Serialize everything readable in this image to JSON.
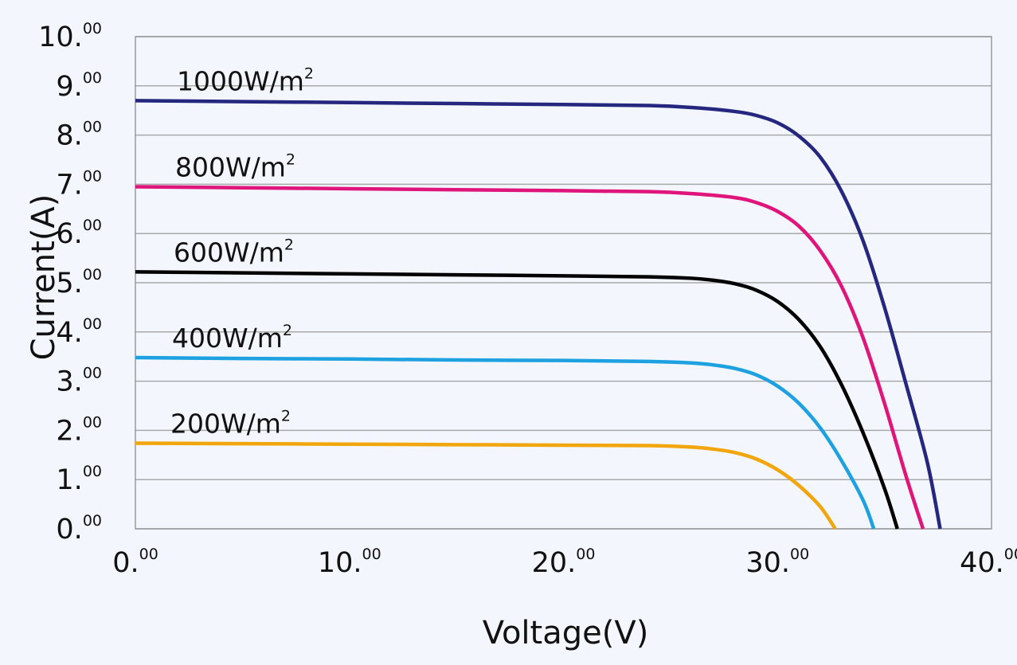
{
  "chart_data": {
    "type": "line",
    "title": "",
    "xlabel": "Voltage(V)",
    "ylabel": "Current(A)",
    "xlim": [
      0,
      40
    ],
    "ylim": [
      0,
      10
    ],
    "grid": true,
    "x_ticks": [
      {
        "value": 0,
        "main": "0.",
        "sup": "00"
      },
      {
        "value": 10,
        "main": "10.",
        "sup": "00"
      },
      {
        "value": 20,
        "main": "20.",
        "sup": "00"
      },
      {
        "value": 30,
        "main": "30.",
        "sup": "00"
      },
      {
        "value": 40,
        "main": "40.",
        "sup": "00"
      }
    ],
    "y_ticks": [
      {
        "value": 0,
        "main": "0.",
        "sup": "00"
      },
      {
        "value": 1,
        "main": "1.",
        "sup": "00"
      },
      {
        "value": 2,
        "main": "2.",
        "sup": "00"
      },
      {
        "value": 3,
        "main": "3.",
        "sup": "00"
      },
      {
        "value": 4,
        "main": "4.",
        "sup": "00"
      },
      {
        "value": 5,
        "main": "5.",
        "sup": "00"
      },
      {
        "value": 6,
        "main": "6.",
        "sup": "00"
      },
      {
        "value": 7,
        "main": "7.",
        "sup": "00"
      },
      {
        "value": 8,
        "main": "8.",
        "sup": "00"
      },
      {
        "value": 9,
        "main": "9.",
        "sup": "00"
      },
      {
        "value": 10,
        "main": "10.",
        "sup": "00"
      }
    ],
    "series": [
      {
        "name": "1000W/m",
        "name_sup": "2",
        "color": "#25277f",
        "points": [
          [
            0,
            8.7
          ],
          [
            5,
            8.68
          ],
          [
            10,
            8.66
          ],
          [
            15,
            8.64
          ],
          [
            20,
            8.62
          ],
          [
            24,
            8.6
          ],
          [
            26,
            8.56
          ],
          [
            28,
            8.48
          ],
          [
            29,
            8.4
          ],
          [
            30,
            8.25
          ],
          [
            31,
            7.98
          ],
          [
            32,
            7.55
          ],
          [
            33,
            6.85
          ],
          [
            34,
            5.85
          ],
          [
            35,
            4.5
          ],
          [
            36,
            2.95
          ],
          [
            37,
            1.35
          ],
          [
            37.6,
            0
          ]
        ]
      },
      {
        "name": "800W/m",
        "name_sup": "2",
        "color": "#e0157c",
        "points": [
          [
            0,
            6.95
          ],
          [
            5,
            6.93
          ],
          [
            10,
            6.91
          ],
          [
            15,
            6.89
          ],
          [
            20,
            6.87
          ],
          [
            24,
            6.85
          ],
          [
            26,
            6.81
          ],
          [
            28,
            6.73
          ],
          [
            29,
            6.63
          ],
          [
            30,
            6.45
          ],
          [
            31,
            6.15
          ],
          [
            32,
            5.65
          ],
          [
            33,
            4.92
          ],
          [
            34,
            3.88
          ],
          [
            35,
            2.55
          ],
          [
            36,
            1.08
          ],
          [
            36.8,
            0
          ]
        ]
      },
      {
        "name": "600W/m",
        "name_sup": "2",
        "color": "#000000",
        "points": [
          [
            0,
            5.22
          ],
          [
            5,
            5.2
          ],
          [
            10,
            5.18
          ],
          [
            15,
            5.16
          ],
          [
            20,
            5.14
          ],
          [
            24,
            5.12
          ],
          [
            26,
            5.09
          ],
          [
            27,
            5.05
          ],
          [
            28,
            4.98
          ],
          [
            29,
            4.85
          ],
          [
            30,
            4.62
          ],
          [
            31,
            4.25
          ],
          [
            32,
            3.7
          ],
          [
            33,
            2.92
          ],
          [
            34,
            1.95
          ],
          [
            35,
            0.82
          ],
          [
            35.6,
            0
          ]
        ]
      },
      {
        "name": "400W/m",
        "name_sup": "2",
        "color": "#1ea1e0",
        "points": [
          [
            0,
            3.48
          ],
          [
            5,
            3.46
          ],
          [
            10,
            3.45
          ],
          [
            15,
            3.43
          ],
          [
            20,
            3.42
          ],
          [
            24,
            3.4
          ],
          [
            26,
            3.37
          ],
          [
            27,
            3.33
          ],
          [
            28,
            3.26
          ],
          [
            29,
            3.13
          ],
          [
            30,
            2.9
          ],
          [
            31,
            2.55
          ],
          [
            32,
            2.05
          ],
          [
            33,
            1.38
          ],
          [
            34,
            0.58
          ],
          [
            34.5,
            0
          ]
        ]
      },
      {
        "name": "200W/m",
        "name_sup": "2",
        "color": "#f2a60d",
        "points": [
          [
            0,
            1.74
          ],
          [
            5,
            1.73
          ],
          [
            10,
            1.72
          ],
          [
            15,
            1.71
          ],
          [
            20,
            1.7
          ],
          [
            24,
            1.69
          ],
          [
            26,
            1.66
          ],
          [
            27,
            1.62
          ],
          [
            28,
            1.55
          ],
          [
            29,
            1.42
          ],
          [
            30,
            1.2
          ],
          [
            31,
            0.88
          ],
          [
            32,
            0.45
          ],
          [
            32.7,
            0
          ]
        ]
      }
    ]
  }
}
